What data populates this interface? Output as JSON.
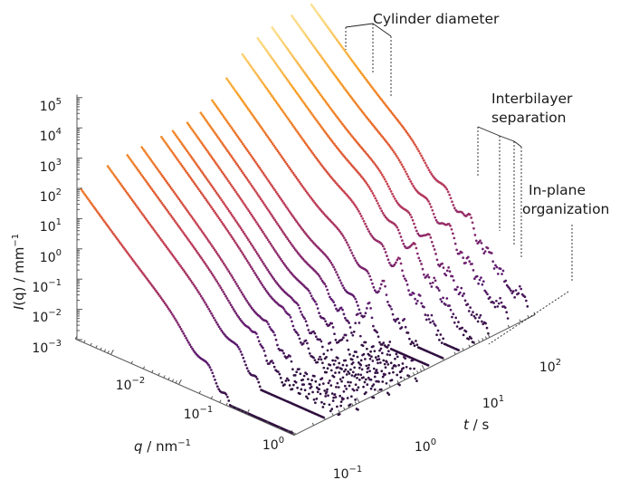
{
  "chart_data": {
    "type": "scatter",
    "plot": "3d-waterfall",
    "xlabel": {
      "var": "q",
      "unit": " / nm",
      "exp": "−1"
    },
    "ylabel": {
      "var": "t",
      "unit": " / s"
    },
    "zlabel": {
      "pre": "I",
      "arg": "(q)",
      "unit": " / mm",
      "exp": "−1"
    },
    "x_scale": "log",
    "y_scale": "log",
    "z_scale": "log",
    "xlim": [
      0.003,
      5
    ],
    "ylim": [
      0.1,
      500
    ],
    "zlim": [
      0.001,
      100000
    ],
    "x_ticks": [
      {
        "base": "10",
        "exp": "−2"
      },
      {
        "base": "10",
        "exp": "−1"
      },
      {
        "base": "10",
        "exp": "0"
      }
    ],
    "y_ticks": [
      {
        "base": "10",
        "exp": "−1"
      },
      {
        "base": "10",
        "exp": "0"
      },
      {
        "base": "10",
        "exp": "1"
      },
      {
        "base": "10",
        "exp": "2"
      }
    ],
    "z_ticks": [
      {
        "base": "10",
        "exp": "5"
      },
      {
        "base": "10",
        "exp": "4"
      },
      {
        "base": "10",
        "exp": "3"
      },
      {
        "base": "10",
        "exp": "2"
      },
      {
        "base": "10",
        "exp": "1"
      },
      {
        "base": "10",
        "exp": "0"
      },
      {
        "base": "10",
        "exp": "−1"
      },
      {
        "base": "10",
        "exp": "−2"
      },
      {
        "base": "10",
        "exp": "−3"
      }
    ],
    "colormap": [
      "#2d0f3d",
      "#5b1a6e",
      "#8c2a6b",
      "#c33d56",
      "#e8642b",
      "#f79d22",
      "#fbd87a",
      "#fdf1c4"
    ],
    "series_times_s": [
      0.1,
      0.3,
      0.6,
      1,
      2,
      3,
      5,
      8,
      12,
      20,
      35,
      60,
      100,
      200,
      400
    ],
    "annotations": [
      {
        "id": "cylinder-diameter",
        "lines": [
          "Cylinder diameter"
        ]
      },
      {
        "id": "interbilayer-separation",
        "lines": [
          "Interbilayer",
          "separation"
        ]
      },
      {
        "id": "in-plane-organization",
        "lines": [
          "In-plane",
          "organization"
        ]
      }
    ]
  }
}
